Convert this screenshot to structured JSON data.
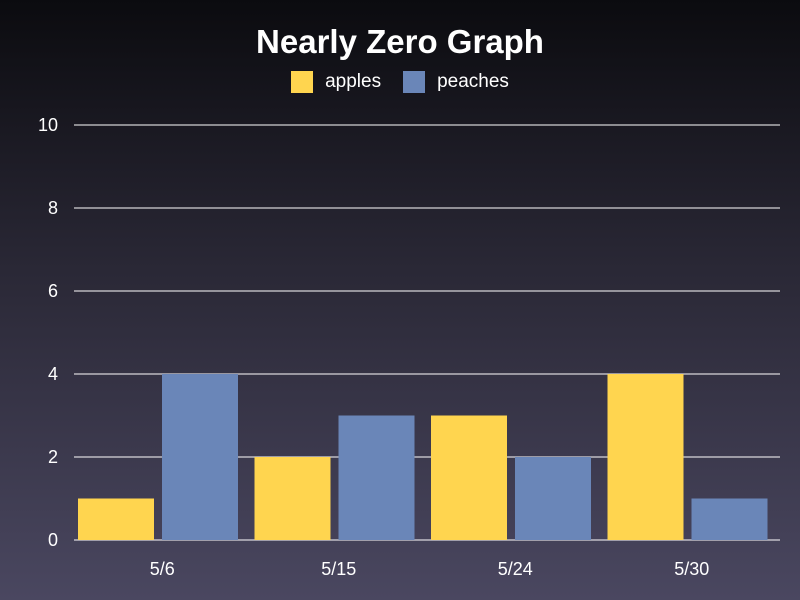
{
  "chart_data": {
    "type": "bar",
    "title": "Nearly Zero Graph",
    "categories": [
      "5/6",
      "5/15",
      "5/24",
      "5/30"
    ],
    "series": [
      {
        "name": "apples",
        "values": [
          1,
          2,
          3,
          4
        ],
        "color": "#ffd54f"
      },
      {
        "name": "peaches",
        "values": [
          4,
          3,
          2,
          1
        ],
        "color": "#6a86b8"
      }
    ],
    "xlabel": "",
    "ylabel": "",
    "ylim": [
      0,
      10
    ],
    "yticks": [
      0,
      2,
      4,
      6,
      8,
      10
    ],
    "grid": true,
    "legend_position": "top-center"
  }
}
